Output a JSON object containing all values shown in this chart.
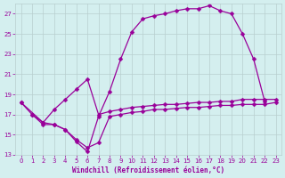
{
  "xlabel": "Windchill (Refroidissement éolien,°C)",
  "bg_color": "#d4efef",
  "grid_color": "#b8cece",
  "line_color": "#990099",
  "xlim": [
    -0.5,
    23.5
  ],
  "ylim": [
    13,
    28
  ],
  "yticks": [
    13,
    15,
    17,
    19,
    21,
    23,
    25,
    27
  ],
  "xticks": [
    0,
    1,
    2,
    3,
    4,
    5,
    6,
    7,
    8,
    9,
    10,
    11,
    12,
    13,
    14,
    15,
    16,
    17,
    18,
    19,
    20,
    21,
    22,
    23
  ],
  "curve_top_x": [
    0,
    1,
    2,
    3,
    4,
    5,
    6,
    7,
    8,
    9,
    10,
    11,
    12,
    13,
    14,
    15,
    16,
    17,
    18,
    19,
    20,
    21,
    22
  ],
  "curve_top_y": [
    18.2,
    17.0,
    16.2,
    16.0,
    15.5,
    14.3,
    13.3,
    16.8,
    19.3,
    22.5,
    25.2,
    26.5,
    26.8,
    27.0,
    27.3,
    27.5,
    27.5,
    27.8,
    27.3,
    27.0,
    25.0,
    22.5,
    18.3
  ],
  "curve_mid_x": [
    0,
    2,
    3,
    4,
    5,
    6,
    7,
    8,
    9,
    10,
    11,
    12,
    13,
    14,
    15,
    16,
    17,
    18,
    19,
    20,
    21,
    22,
    23
  ],
  "curve_mid_y": [
    18.2,
    16.2,
    17.5,
    18.5,
    19.5,
    20.5,
    17.0,
    17.3,
    17.5,
    17.7,
    17.8,
    17.9,
    18.0,
    18.0,
    18.1,
    18.2,
    18.2,
    18.3,
    18.3,
    18.5,
    18.5,
    18.5,
    18.5
  ],
  "curve_bot_x": [
    1,
    2,
    3,
    4,
    5,
    6,
    7,
    8,
    9,
    10,
    11,
    12,
    13,
    14,
    15,
    16,
    17,
    18,
    19,
    20,
    21,
    22,
    23
  ],
  "curve_bot_y": [
    17.0,
    16.0,
    16.0,
    15.5,
    14.5,
    13.7,
    14.2,
    16.8,
    17.0,
    17.2,
    17.3,
    17.5,
    17.5,
    17.6,
    17.7,
    17.7,
    17.8,
    17.9,
    17.9,
    18.0,
    18.0,
    18.0,
    18.2
  ]
}
